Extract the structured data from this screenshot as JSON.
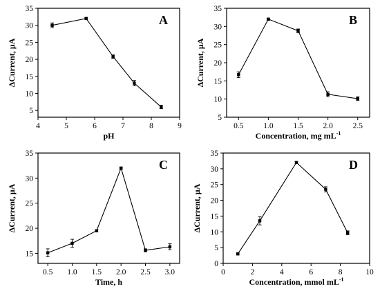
{
  "chart_data": [
    {
      "type": "line",
      "panel_label": "A",
      "xlabel": "pH",
      "ylabel": "ΔCurrent, μA",
      "xlim": [
        4,
        9
      ],
      "ylim": [
        3,
        35
      ],
      "xticks": [
        4,
        5,
        6,
        7,
        8,
        9
      ],
      "yticks": [
        5,
        10,
        15,
        20,
        25,
        30,
        35
      ],
      "x": [
        4.5,
        5.7,
        6.65,
        7.4,
        8.35
      ],
      "y": [
        30.0,
        32.0,
        20.8,
        13.0,
        6.0
      ],
      "error": [
        0.7,
        0.3,
        0.5,
        0.8,
        0.5
      ]
    },
    {
      "type": "line",
      "panel_label": "B",
      "xlabel": "Concentration, mg mL",
      "xlabel_superscript": "-1",
      "ylabel": "ΔCurrent, μA",
      "xlim": [
        0.3,
        2.7
      ],
      "ylim": [
        5,
        35
      ],
      "xticks": [
        0.5,
        1.0,
        1.5,
        2.0,
        2.5
      ],
      "xtick_labels": [
        "0.5",
        "1.0",
        "1.5",
        "2.0",
        "2.5"
      ],
      "yticks": [
        5,
        10,
        15,
        20,
        25,
        30,
        35
      ],
      "x": [
        0.5,
        1.0,
        1.5,
        2.0,
        2.5
      ],
      "y": [
        16.7,
        32.0,
        28.8,
        11.3,
        10.1
      ],
      "error": [
        0.8,
        0.3,
        0.5,
        0.7,
        0.5
      ]
    },
    {
      "type": "line",
      "panel_label": "C",
      "xlabel": "Time, h",
      "ylabel": "ΔCurrent, μA",
      "xlim": [
        0.3,
        3.2
      ],
      "ylim": [
        13,
        35
      ],
      "xticks": [
        0.5,
        1.0,
        1.5,
        2.0,
        2.5,
        3.0
      ],
      "xtick_labels": [
        "0.5",
        "1.0",
        "1.5",
        "2.0",
        "2.5",
        "3.0"
      ],
      "yticks": [
        15,
        20,
        25,
        30,
        35
      ],
      "x": [
        0.5,
        1.0,
        1.5,
        2.0,
        2.5,
        3.0
      ],
      "y": [
        15.1,
        17.0,
        19.5,
        32.0,
        15.6,
        16.3
      ],
      "error": [
        0.8,
        0.8,
        0.2,
        0.2,
        0.3,
        0.6
      ]
    },
    {
      "type": "line",
      "panel_label": "D",
      "xlabel": "Concentration, mmol mL",
      "xlabel_superscript": "-1",
      "ylabel": "ΔCurrent, μA",
      "xlim": [
        0,
        10
      ],
      "ylim": [
        0,
        35
      ],
      "xticks": [
        0,
        2,
        4,
        6,
        8,
        10
      ],
      "yticks": [
        0,
        5,
        10,
        15,
        20,
        25,
        30,
        35
      ],
      "x": [
        1.0,
        2.5,
        5.0,
        7.0,
        8.5
      ],
      "y": [
        3.0,
        13.5,
        32.0,
        23.5,
        9.7
      ],
      "error": [
        0.3,
        1.3,
        0.3,
        0.8,
        0.6
      ]
    }
  ]
}
